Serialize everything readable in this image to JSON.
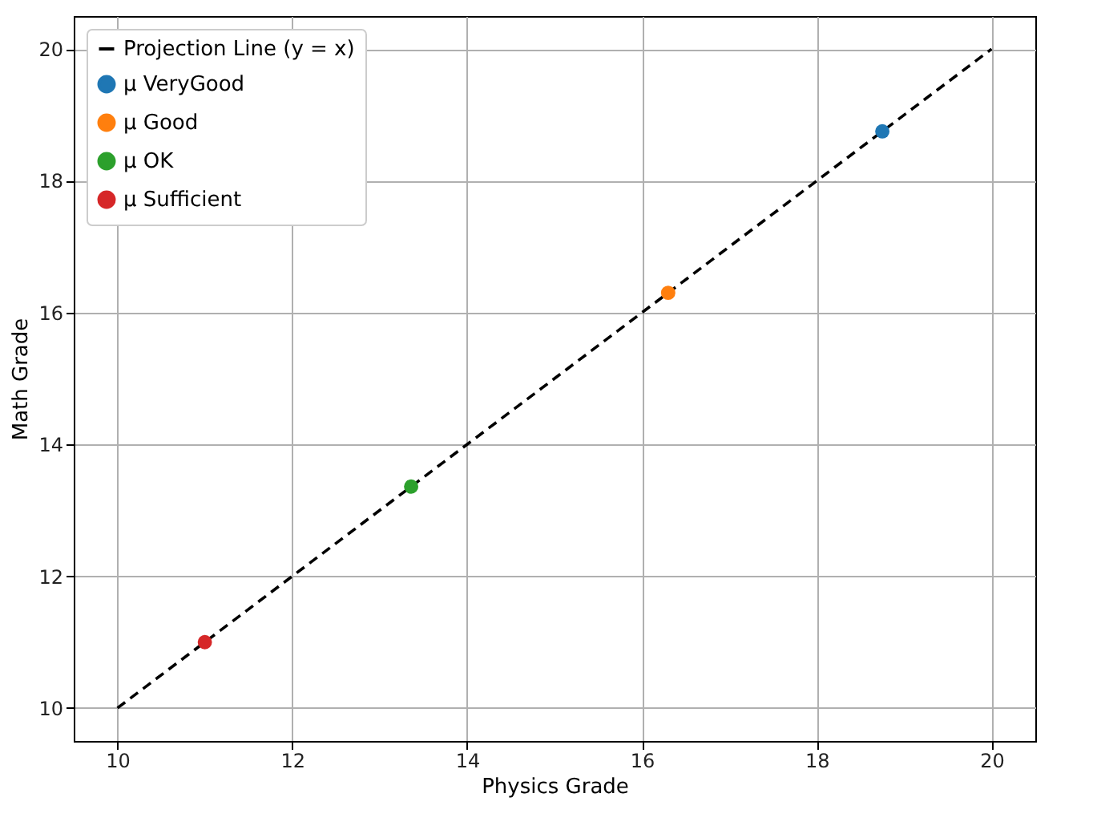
{
  "chart_data": {
    "type": "scatter",
    "xlabel": "Physics Grade",
    "ylabel": "Math Grade",
    "xlim": [
      9.5,
      20.5
    ],
    "ylim": [
      9.5,
      20.5
    ],
    "xticks": [
      10,
      12,
      14,
      16,
      18,
      20
    ],
    "yticks": [
      10,
      12,
      14,
      16,
      18,
      20
    ],
    "grid": true,
    "legend": "top left",
    "marker": "circle",
    "series": [
      {
        "name": "Projection Line (y = x)",
        "type": "line",
        "marker": "none",
        "line_style": "dashed",
        "color": "#000000",
        "x": [
          10,
          20
        ],
        "values": [
          10,
          20
        ]
      },
      {
        "name": "μ VeryGood",
        "color": "#1f77b4",
        "x": [
          18.75
        ],
        "values": [
          18.75
        ]
      },
      {
        "name": "μ Good",
        "color": "#ff7f0e",
        "x": [
          16.3
        ],
        "values": [
          16.3
        ]
      },
      {
        "name": "μ OK",
        "color": "#2ca02c",
        "x": [
          13.36
        ],
        "values": [
          13.36
        ]
      },
      {
        "name": "μ Sufficient",
        "color": "#d62728",
        "x": [
          11.0
        ],
        "values": [
          11.0
        ]
      }
    ]
  }
}
